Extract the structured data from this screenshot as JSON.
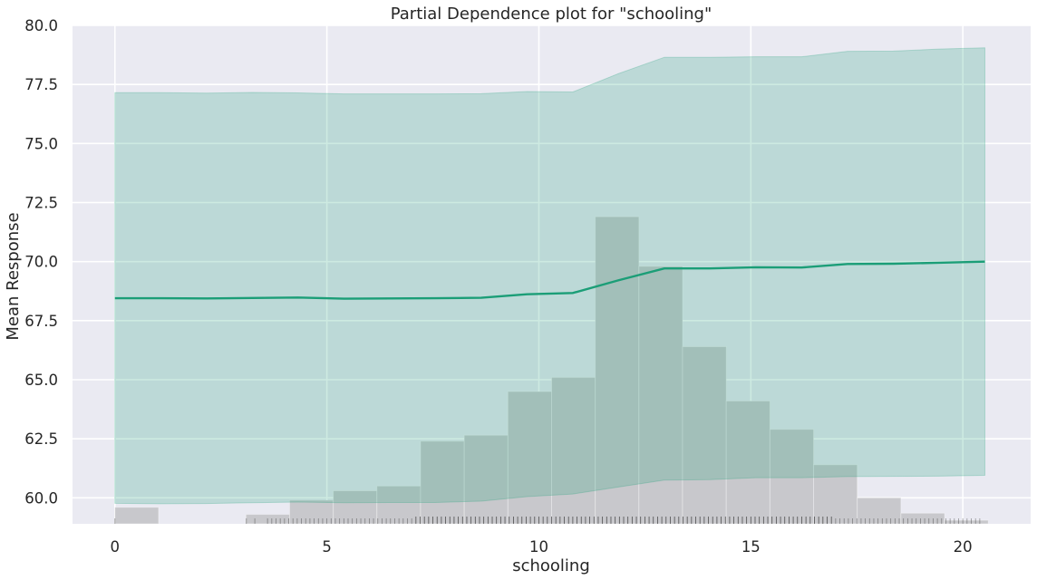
{
  "chart_data": {
    "type": "line",
    "title": "Partial Dependence plot for \"schooling\"",
    "xlabel": "schooling",
    "ylabel": "Mean Response",
    "xlim": [
      -1.0,
      21.6
    ],
    "ylim": [
      58.9,
      80.0
    ],
    "grid": true,
    "xticks": [
      0,
      5,
      10,
      15,
      20
    ],
    "xtick_labels": [
      "0",
      "5",
      "10",
      "15",
      "20"
    ],
    "yticks": [
      60.0,
      62.5,
      65.0,
      67.5,
      70.0,
      72.5,
      75.0,
      77.5,
      80.0
    ],
    "ytick_labels": [
      "60.0",
      "62.5",
      "65.0",
      "67.5",
      "70.0",
      "72.5",
      "75.0",
      "77.5",
      "80.0"
    ],
    "series": [
      {
        "x": [
          0.0,
          1.08,
          2.16,
          3.24,
          4.32,
          5.4,
          6.48,
          7.56,
          8.64,
          9.72,
          10.8,
          11.88,
          12.96,
          14.04,
          15.12,
          16.2,
          17.28,
          18.36,
          19.44,
          20.52
        ],
        "values": [
          68.45,
          68.45,
          68.44,
          68.46,
          68.48,
          68.43,
          68.44,
          68.45,
          68.47,
          68.62,
          68.67,
          69.21,
          69.71,
          69.71,
          69.76,
          69.75,
          69.9,
          69.91,
          69.95,
          70.0
        ],
        "upper": [
          77.15,
          77.15,
          77.13,
          77.16,
          77.14,
          77.1,
          77.1,
          77.1,
          77.11,
          77.2,
          77.18,
          77.96,
          78.65,
          78.65,
          78.67,
          78.67,
          78.9,
          78.91,
          79.0,
          79.05
        ],
        "lower": [
          59.77,
          59.75,
          59.76,
          59.79,
          59.82,
          59.79,
          59.8,
          59.8,
          59.86,
          60.05,
          60.16,
          60.46,
          60.75,
          60.77,
          60.85,
          60.85,
          60.9,
          60.91,
          60.92,
          60.95
        ]
      }
    ],
    "histogram": {
      "bin_edges": [
        0.0,
        1.03,
        2.06,
        3.09,
        4.12,
        5.15,
        6.18,
        7.21,
        8.24,
        9.27,
        10.3,
        11.33,
        12.36,
        13.39,
        14.42,
        15.45,
        16.48,
        17.51,
        18.54,
        19.57,
        20.6
      ],
      "values": [
        59.6,
        58.88,
        58.88,
        59.3,
        59.9,
        60.3,
        60.5,
        62.4,
        62.65,
        64.5,
        65.1,
        71.9,
        69.8,
        66.4,
        64.1,
        62.9,
        61.4,
        60.0,
        59.35,
        59.05
      ]
    },
    "colors": {
      "line": "#1b9e77",
      "band": "#1b9e77",
      "histogram": "#c8c8cc",
      "background": "#eaeaf2",
      "grid": "#ffffff",
      "rug": "#262626"
    }
  }
}
